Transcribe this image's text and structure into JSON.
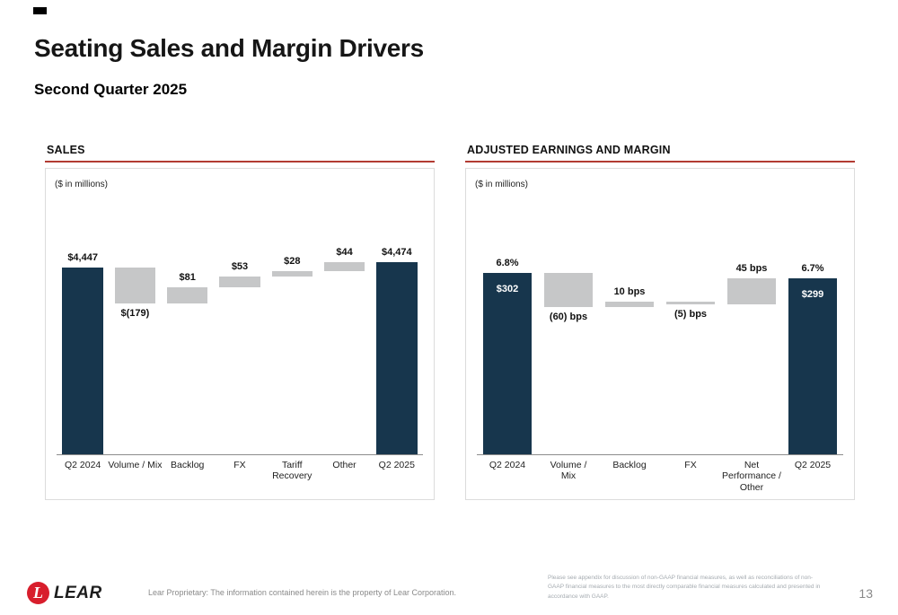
{
  "page": {
    "title": "Seating Sales and Margin Drivers",
    "subtitle": "Second Quarter 2025",
    "page_number": "13",
    "footer_left": "Lear Proprietary: The information contained herein is the property of Lear Corporation.",
    "footer_right": "Please see appendix for discussion of non-GAAP financial measures, as well as reconciliations of non-GAAP financial measures to the most directly comparable financial measures calculated and presented in accordance with GAAP.",
    "logo_text": "LEAR",
    "logo_letter": "L"
  },
  "colors": {
    "navy": "#17364d",
    "gray_bar": "#c6c7c8",
    "accent_red": "#b23b32",
    "logo_red": "#d81e2c"
  },
  "chart_data": [
    {
      "type": "bar",
      "subtype": "waterfall",
      "title": "SALES",
      "units_note": "($ in millions)",
      "units": "USD millions",
      "categories": [
        "Q2 2024",
        "Volume / Mix",
        "Backlog",
        "FX",
        "Tariff\nRecovery",
        "Other",
        "Q2 2025"
      ],
      "bars": [
        {
          "kind": "total",
          "value": 4447,
          "label": "$4,447",
          "label_pos": "above"
        },
        {
          "kind": "delta",
          "value": -179,
          "label": "$(179)",
          "label_pos": "below"
        },
        {
          "kind": "delta",
          "value": 81,
          "label": "$81",
          "label_pos": "above"
        },
        {
          "kind": "delta",
          "value": 53,
          "label": "$53",
          "label_pos": "above"
        },
        {
          "kind": "delta",
          "value": 28,
          "label": "$28",
          "label_pos": "above"
        },
        {
          "kind": "delta",
          "value": 44,
          "label": "$44",
          "label_pos": "above"
        },
        {
          "kind": "total",
          "value": 4474,
          "label": "$4,474",
          "label_pos": "above"
        }
      ]
    },
    {
      "type": "bar",
      "subtype": "waterfall",
      "title": "ADJUSTED EARNINGS AND MARGIN",
      "units_note": "($ in millions)",
      "units": "margin basis points (totals shown as % of sales with $ amount inside bar)",
      "categories": [
        "Q2 2024",
        "Volume /\nMix",
        "Backlog",
        "FX",
        "Net\nPerformance /\nOther",
        "Q2 2025"
      ],
      "bars": [
        {
          "kind": "total",
          "value": 680,
          "label": "6.8%",
          "label_pos": "above",
          "inner_label": "$302"
        },
        {
          "kind": "delta",
          "value": -60,
          "label": "(60) bps",
          "label_pos": "below"
        },
        {
          "kind": "delta",
          "value": 10,
          "label": "10 bps",
          "label_pos": "above"
        },
        {
          "kind": "delta",
          "value": -5,
          "label": "(5) bps",
          "label_pos": "below"
        },
        {
          "kind": "delta",
          "value": 45,
          "label": "45 bps",
          "label_pos": "above"
        },
        {
          "kind": "total",
          "value": 670,
          "label": "6.7%",
          "label_pos": "above",
          "inner_label": "$299"
        }
      ]
    }
  ]
}
